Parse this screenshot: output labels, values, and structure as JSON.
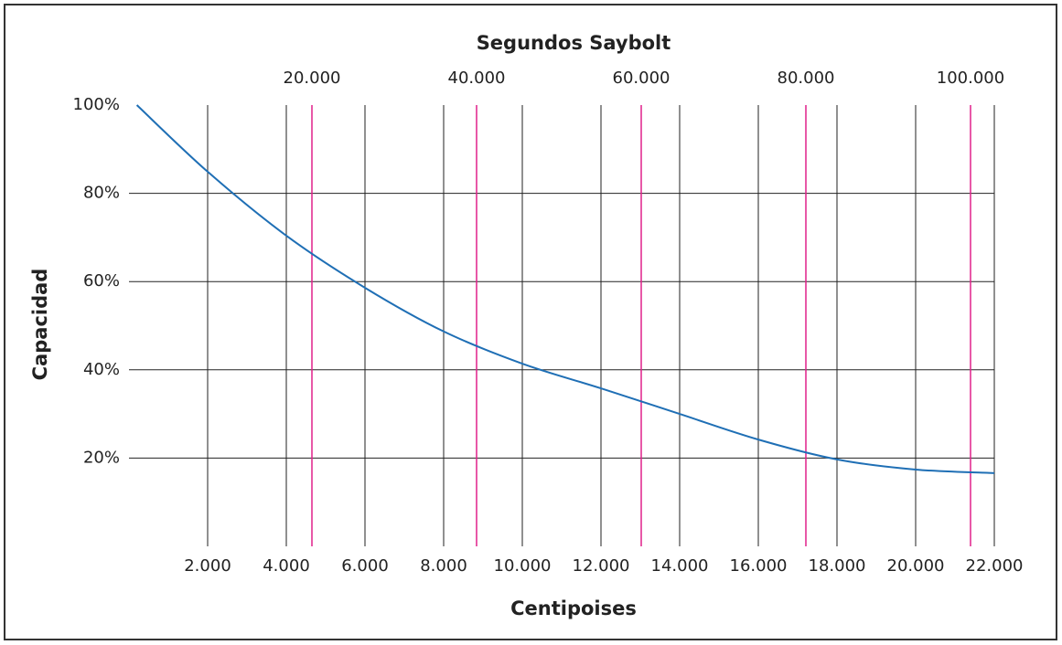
{
  "chart_data": {
    "type": "line",
    "xlabel": "Centipoises",
    "x2label": "Segundos Saybolt",
    "ylabel": "Capacidad",
    "x": [
      200,
      2000,
      4000,
      6000,
      8000,
      10000,
      12000,
      14000,
      16000,
      18000,
      20000,
      22000
    ],
    "values": [
      100,
      84.9,
      70.4,
      58.6,
      48.7,
      41.4,
      35.8,
      30.0,
      24.2,
      19.7,
      17.4,
      16.6
    ],
    "color": "#1f6fb5",
    "xlim": [
      0,
      22000
    ],
    "xticks": [
      {
        "value": 2000,
        "label": "2.000"
      },
      {
        "value": 4000,
        "label": "4.000"
      },
      {
        "value": 6000,
        "label": "6.000"
      },
      {
        "value": 8000,
        "label": "8.000"
      },
      {
        "value": 10000,
        "label": "10.000"
      },
      {
        "value": 12000,
        "label": "12.000"
      },
      {
        "value": 14000,
        "label": "14.000"
      },
      {
        "value": 16000,
        "label": "16.000"
      },
      {
        "value": 18000,
        "label": "18.000"
      },
      {
        "value": 20000,
        "label": "20.000"
      },
      {
        "value": 22000,
        "label": "22.000"
      }
    ],
    "x2lim": [
      -2222,
      102889
    ],
    "x2ticks": [
      {
        "value": 20000,
        "label": "20.000"
      },
      {
        "value": 40000,
        "label": "40.000"
      },
      {
        "value": 60000,
        "label": "60.000"
      },
      {
        "value": 80000,
        "label": "80.000"
      },
      {
        "value": 100000,
        "label": "100.000"
      }
    ],
    "x2color": "#e0218a",
    "ylim": [
      0,
      100
    ],
    "yticks": [
      {
        "value": 20,
        "label": "20%"
      },
      {
        "value": 40,
        "label": "40%"
      },
      {
        "value": 60,
        "label": "60%"
      },
      {
        "value": 80,
        "label": "80%"
      },
      {
        "value": 100,
        "label": "100%"
      }
    ],
    "grid": true
  }
}
